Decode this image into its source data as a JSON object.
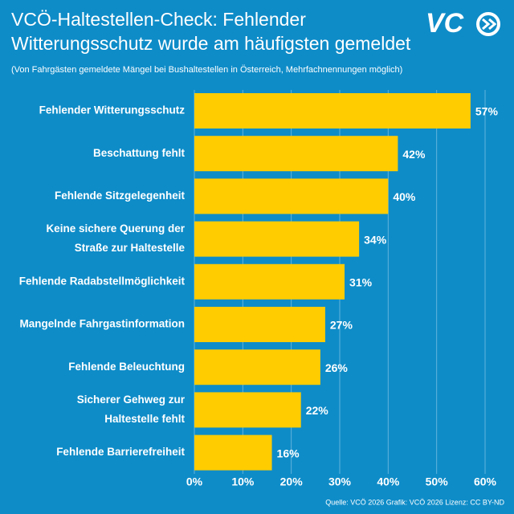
{
  "chart_data": {
    "type": "barh",
    "title": [
      "VCÖ-Haltestellen-Check: Fehlender",
      "Witterungsschutz wurde am häufigsten gemeldet"
    ],
    "subtitle": "(Von Fahrgästen gemeldete Mängel bei Bushaltestellen in Österreich, Mehrfachnennungen möglich)",
    "logo": "VC",
    "source": "Quelle: VCÖ 2026 Grafik: VCÖ 2026 Lizenz: CC BY-ND",
    "categories": [
      [
        "Fehlender Witterungsschutz"
      ],
      [
        "Beschattung fehlt"
      ],
      [
        "Fehlende Sitzgelegenheit"
      ],
      [
        "Keine sichere Querung der",
        "Straße zur Haltestelle"
      ],
      [
        "Fehlende Radabstellmöglichkeit"
      ],
      [
        "Mangelnde Fahrgastinformation"
      ],
      [
        "Fehlende Beleuchtung"
      ],
      [
        "Sicherer Gehweg zur",
        "Haltestelle fehlt"
      ],
      [
        "Fehlende Barrierefreiheit"
      ]
    ],
    "values": [
      57,
      42,
      40,
      34,
      31,
      27,
      26,
      22,
      16
    ],
    "value_labels": [
      "57%",
      "42%",
      "40%",
      "34%",
      "31%",
      "27%",
      "26%",
      "22%",
      "16%"
    ],
    "color": "#ffcc00",
    "xlim": [
      0,
      60
    ],
    "xticks": [
      {
        "value": 0,
        "label": "0%"
      },
      {
        "value": 10,
        "label": "10%"
      },
      {
        "value": 20,
        "label": "20%"
      },
      {
        "value": 30,
        "label": "30%"
      },
      {
        "value": 40,
        "label": "40%"
      },
      {
        "value": 50,
        "label": "50%"
      },
      {
        "value": 60,
        "label": "60%"
      }
    ],
    "grid": true
  }
}
